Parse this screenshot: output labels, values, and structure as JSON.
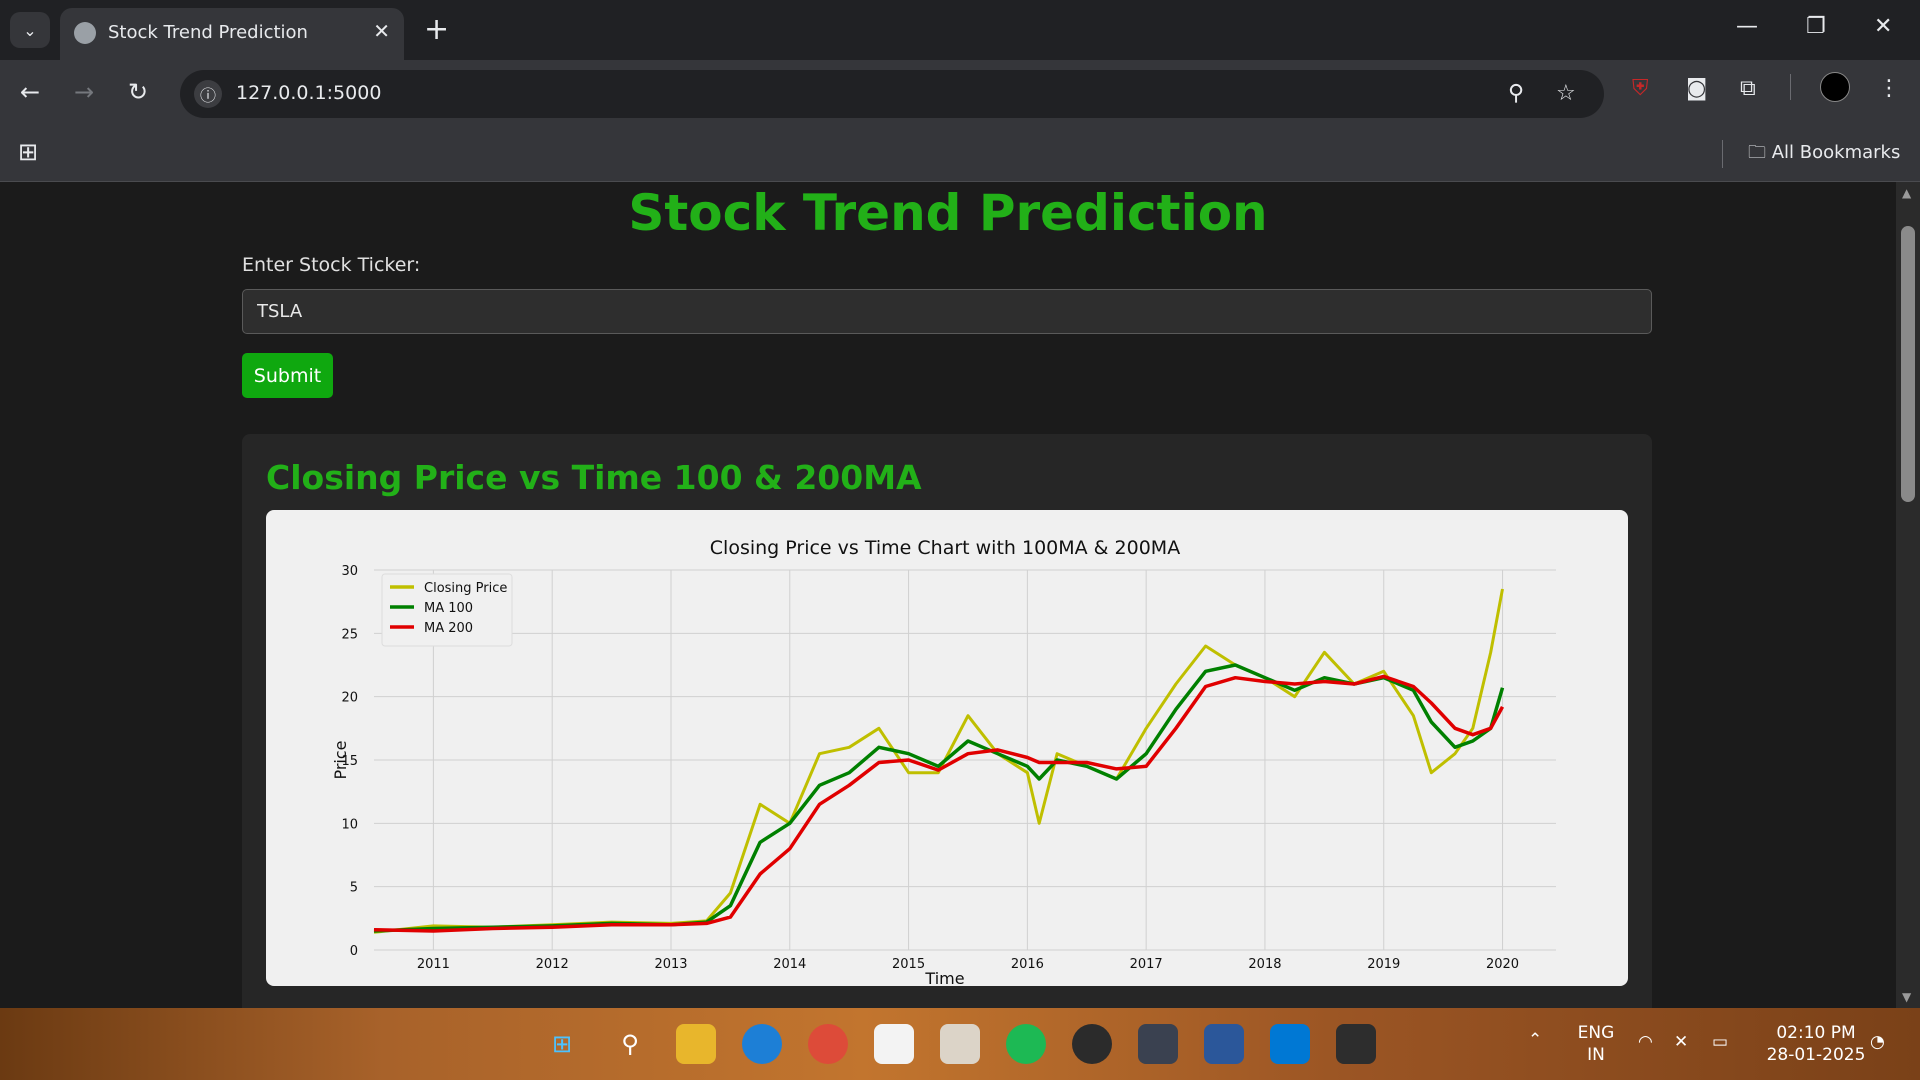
{
  "browser": {
    "tab_title": "Stock Trend Prediction",
    "url": "127.0.0.1:5000",
    "bookmarks_label": "All Bookmarks"
  },
  "page": {
    "heading": "Stock Trend Prediction",
    "input_label": "Enter Stock Ticker:",
    "ticker_value": "TSLA",
    "submit_label": "Submit",
    "section_title": "Closing Price vs Time 100 & 200MA"
  },
  "chart_data": {
    "type": "line",
    "title": "Closing Price vs Time Chart with 100MA & 200MA",
    "xlabel": "Time",
    "ylabel": "Price",
    "ylim": [
      0,
      30
    ],
    "xlim": [
      2010.5,
      2020.45
    ],
    "grid": true,
    "legend_position": "top-left",
    "x_ticks": [
      2011,
      2012,
      2013,
      2014,
      2015,
      2016,
      2017,
      2018,
      2019,
      2020
    ],
    "y_ticks": [
      0,
      5,
      10,
      15,
      20,
      25,
      30
    ],
    "x": [
      2010.5,
      2011,
      2011.5,
      2012,
      2012.5,
      2013,
      2013.3,
      2013.5,
      2013.75,
      2014,
      2014.25,
      2014.5,
      2014.75,
      2015,
      2015.25,
      2015.5,
      2015.75,
      2016,
      2016.1,
      2016.25,
      2016.5,
      2016.75,
      2017,
      2017.25,
      2017.5,
      2017.75,
      2018,
      2018.25,
      2018.5,
      2018.75,
      2019,
      2019.25,
      2019.4,
      2019.6,
      2019.75,
      2019.9,
      2020
    ],
    "series": [
      {
        "name": "Closing Price",
        "color": "#bfbf00",
        "values": [
          1.4,
          1.9,
          1.8,
          2.0,
          2.2,
          2.1,
          2.3,
          4.5,
          11.5,
          10.0,
          15.5,
          16.0,
          17.5,
          14.0,
          14.0,
          18.5,
          15.5,
          14.0,
          10.0,
          15.5,
          14.5,
          13.5,
          17.5,
          21.0,
          24.0,
          22.5,
          21.5,
          20.0,
          23.5,
          21.0,
          22.0,
          18.5,
          14.0,
          15.5,
          17.5,
          23.5,
          28.5
        ]
      },
      {
        "name": "MA 100",
        "color": "#008000",
        "values": [
          1.5,
          1.7,
          1.8,
          1.9,
          2.1,
          2.0,
          2.2,
          3.5,
          8.5,
          10.0,
          13.0,
          14.0,
          16.0,
          15.5,
          14.5,
          16.5,
          15.5,
          14.5,
          13.5,
          15.0,
          14.5,
          13.5,
          15.5,
          19.0,
          22.0,
          22.5,
          21.5,
          20.5,
          21.5,
          21.0,
          21.5,
          20.5,
          18.0,
          16.0,
          16.5,
          17.5,
          20.7
        ]
      },
      {
        "name": "MA 200",
        "color": "#e00000",
        "values": [
          1.6,
          1.5,
          1.7,
          1.8,
          2.0,
          2.0,
          2.1,
          2.6,
          6.0,
          8.0,
          11.5,
          13.0,
          14.8,
          15.0,
          14.2,
          15.5,
          15.8,
          15.2,
          14.8,
          14.8,
          14.8,
          14.3,
          14.5,
          17.5,
          20.8,
          21.5,
          21.2,
          21.0,
          21.2,
          21.0,
          21.6,
          20.8,
          19.5,
          17.5,
          17.0,
          17.5,
          19.2
        ]
      }
    ]
  },
  "taskbar": {
    "lang_top": "ENG",
    "lang_bottom": "IN",
    "time": "02:10 PM",
    "date": "28-01-2025"
  }
}
